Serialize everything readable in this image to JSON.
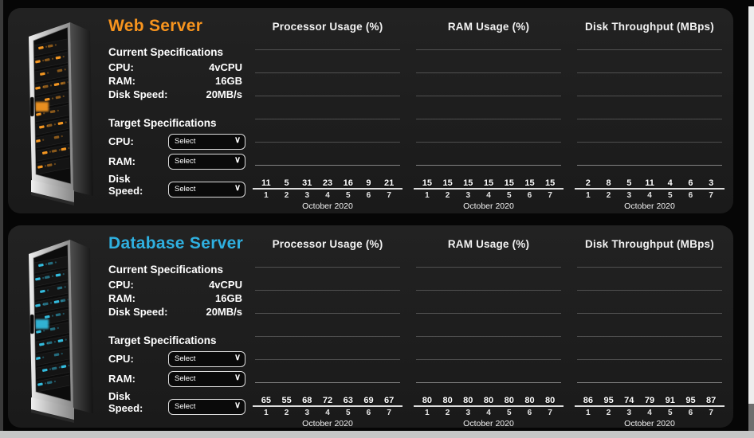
{
  "servers": [
    {
      "name": "Web Server",
      "accent": "#f7941e",
      "glow": "#ff9d22",
      "current_specs_heading": "Current Specifications",
      "target_specs_heading": "Target Specifications",
      "current_specs": [
        {
          "label": "CPU:",
          "value": "4vCPU"
        },
        {
          "label": "RAM:",
          "value": "16GB"
        },
        {
          "label": "Disk Speed:",
          "value": "20MB/s"
        }
      ],
      "target_specs": [
        {
          "label": "CPU:",
          "placeholder": "Select"
        },
        {
          "label": "RAM:",
          "placeholder": "Select"
        },
        {
          "label": "Disk Speed:",
          "placeholder": "Select"
        }
      ]
    },
    {
      "name": "Database Server",
      "accent": "#2fb0e0",
      "glow": "#35c4e8",
      "current_specs_heading": "Current Specifications",
      "target_specs_heading": "Target Specifications",
      "current_specs": [
        {
          "label": "CPU:",
          "value": "4vCPU"
        },
        {
          "label": "RAM:",
          "value": "16GB"
        },
        {
          "label": "Disk Speed:",
          "value": "20MB/s"
        }
      ],
      "target_specs": [
        {
          "label": "CPU:",
          "placeholder": "Select"
        },
        {
          "label": "RAM:",
          "placeholder": "Select"
        },
        {
          "label": "Disk Speed:",
          "placeholder": "Select"
        }
      ]
    }
  ],
  "chart_data": [
    {
      "server": "Web Server",
      "type": "bar",
      "title": "Processor Usage (%)",
      "categories": [
        "1",
        "2",
        "3",
        "4",
        "5",
        "6",
        "7"
      ],
      "values": [
        11,
        5,
        31,
        23,
        16,
        9,
        21
      ],
      "xlabel": "October 2020",
      "ylim": [
        0,
        120
      ],
      "gridline_step": 20,
      "grid": true,
      "legend": "none",
      "bar_color": "#f9a01b"
    },
    {
      "server": "Web Server",
      "type": "bar",
      "title": "RAM Usage (%)",
      "categories": [
        "1",
        "2",
        "3",
        "4",
        "5",
        "6",
        "7"
      ],
      "values": [
        15,
        15,
        15,
        15,
        15,
        15,
        15
      ],
      "xlabel": "October 2020",
      "ylim": [
        0,
        120
      ],
      "gridline_step": 20,
      "grid": true,
      "legend": "none",
      "bar_color": "#f9a01b"
    },
    {
      "server": "Web Server",
      "type": "bar",
      "title": "Disk Throughput (MBps)",
      "categories": [
        "1",
        "2",
        "3",
        "4",
        "5",
        "6",
        "7"
      ],
      "values": [
        2,
        8,
        5,
        11,
        4,
        6,
        3
      ],
      "xlabel": "October 2020",
      "ylim": [
        0,
        120
      ],
      "gridline_step": 20,
      "grid": true,
      "legend": "none",
      "bar_color": "#f9a01b"
    },
    {
      "server": "Database Server",
      "type": "bar",
      "title": "Processor Usage (%)",
      "categories": [
        "1",
        "2",
        "3",
        "4",
        "5",
        "6",
        "7"
      ],
      "values": [
        65,
        55,
        68,
        72,
        63,
        69,
        67
      ],
      "xlabel": "October 2020",
      "ylim": [
        0,
        120
      ],
      "gridline_step": 20,
      "grid": true,
      "legend": "none",
      "bar_color": "#35b6e5"
    },
    {
      "server": "Database Server",
      "type": "bar",
      "title": "RAM Usage (%)",
      "categories": [
        "1",
        "2",
        "3",
        "4",
        "5",
        "6",
        "7"
      ],
      "values": [
        80,
        80,
        80,
        80,
        80,
        80,
        80
      ],
      "xlabel": "October 2020",
      "ylim": [
        0,
        120
      ],
      "gridline_step": 20,
      "grid": true,
      "legend": "none",
      "bar_color": "#35b6e5"
    },
    {
      "server": "Database Server",
      "type": "bar",
      "title": "Disk Throughput (MBps)",
      "categories": [
        "1",
        "2",
        "3",
        "4",
        "5",
        "6",
        "7"
      ],
      "values": [
        86,
        95,
        74,
        79,
        91,
        95,
        87
      ],
      "xlabel": "October 2020",
      "ylim": [
        0,
        120
      ],
      "gridline_step": 20,
      "grid": true,
      "legend": "none",
      "bar_color": "#35b6e5"
    }
  ]
}
